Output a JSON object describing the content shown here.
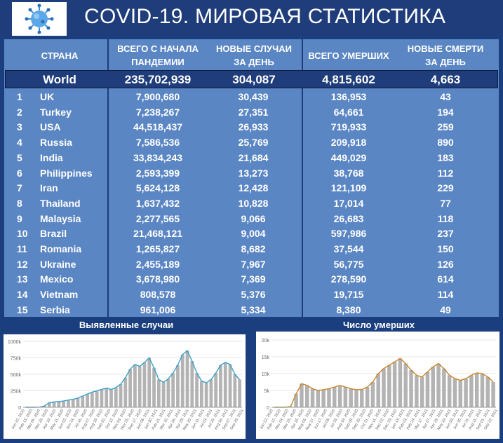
{
  "header": {
    "title": "COVID-19. МИРОВАЯ СТАТИСТИКА",
    "logo_icon": "coronavirus-icon"
  },
  "table": {
    "columns": {
      "country": "СТРАНА",
      "total_line1": "ВСЕГО С НАЧАЛА",
      "total_line2": "ПАНДЕМИИ",
      "new_line1": "НОВЫЕ СЛУЧАИ",
      "new_line2": "ЗА ДЕНЬ",
      "deaths": "ВСЕГО УМЕРШИХ",
      "new_deaths_line1": "НОВЫЕ СМЕРТИ",
      "new_deaths_line2": "ЗА ДЕНЬ"
    },
    "world": {
      "name": "World",
      "total": "235,702,939",
      "new": "304,087",
      "deaths": "4,815,602",
      "new_deaths": "4,663"
    },
    "rows": [
      {
        "rank": "1",
        "country": "UK",
        "total": "7,900,680",
        "new": "30,439",
        "deaths": "136,953",
        "new_deaths": "43"
      },
      {
        "rank": "2",
        "country": "Turkey",
        "total": "7,238,267",
        "new": "27,351",
        "deaths": "64,661",
        "new_deaths": "194"
      },
      {
        "rank": "3",
        "country": "USA",
        "total": "44,518,437",
        "new": "26,933",
        "deaths": "719,933",
        "new_deaths": "259"
      },
      {
        "rank": "4",
        "country": "Russia",
        "total": "7,586,536",
        "new": "25,769",
        "deaths": "209,918",
        "new_deaths": "890"
      },
      {
        "rank": "5",
        "country": "India",
        "total": "33,834,243",
        "new": "21,684",
        "deaths": "449,029",
        "new_deaths": "183"
      },
      {
        "rank": "6",
        "country": "Philippines",
        "total": "2,593,399",
        "new": "13,273",
        "deaths": "38,768",
        "new_deaths": "112"
      },
      {
        "rank": "7",
        "country": "Iran",
        "total": "5,624,128",
        "new": "12,428",
        "deaths": "121,109",
        "new_deaths": "229"
      },
      {
        "rank": "8",
        "country": "Thailand",
        "total": "1,637,432",
        "new": "10,828",
        "deaths": "17,014",
        "new_deaths": "77"
      },
      {
        "rank": "9",
        "country": "Malaysia",
        "total": "2,277,565",
        "new": "9,066",
        "deaths": "26,683",
        "new_deaths": "118"
      },
      {
        "rank": "10",
        "country": "Brazil",
        "total": "21,468,121",
        "new": "9,004",
        "deaths": "597,986",
        "new_deaths": "237"
      },
      {
        "rank": "11",
        "country": "Romania",
        "total": "1,265,827",
        "new": "8,682",
        "deaths": "37,544",
        "new_deaths": "150"
      },
      {
        "rank": "12",
        "country": "Ukraine",
        "total": "2,455,189",
        "new": "7,967",
        "deaths": "56,775",
        "new_deaths": "126"
      },
      {
        "rank": "13",
        "country": "Mexico",
        "total": "3,678,980",
        "new": "7,369",
        "deaths": "278,590",
        "new_deaths": "614"
      },
      {
        "rank": "14",
        "country": "Vietnam",
        "total": "808,578",
        "new": "5,376",
        "deaths": "19,715",
        "new_deaths": "114"
      },
      {
        "rank": "15",
        "country": "Serbia",
        "total": "961,006",
        "new": "5,334",
        "deaths": "8,380",
        "new_deaths": "49"
      }
    ]
  },
  "colors": {
    "header_bg": "#1f3d7a",
    "table_bg": "#5b86c4",
    "bar": "#b3b3b3",
    "cases_line": "#3aa0c8",
    "deaths_line": "#c8862a"
  },
  "chart_data": [
    {
      "type": "bar",
      "title": "Выявленные случаи",
      "series_style": "bars-with-line",
      "y_ticks": [
        "0",
        "250k",
        "500k",
        "750k",
        "1000k"
      ],
      "ylim": [
        0,
        1000000
      ],
      "x_ticks": [
        "Jan 22, 2020",
        "Feb 13, 2020",
        "Mar 06, 2020",
        "Mar 28, 2020",
        "Apr 19, 2020",
        "May 11, 2020",
        "Jun 02, 2020",
        "Jun 24, 2020",
        "Jul 16, 2020",
        "Aug 07, 2020",
        "Aug 29, 2020",
        "Sep 20, 2020",
        "Oct 12, 2020",
        "Nov 03, 2020",
        "Nov 25, 2020",
        "Dec 17, 2020",
        "Jan 08, 2021",
        "Jan 30, 2021",
        "Feb 21, 2021",
        "Mar 15, 2021",
        "Apr 06, 2021",
        "Apr 28, 2021",
        "May 20, 2021",
        "Jun 11, 2021",
        "Jul 03, 2021",
        "Jul 25, 2021",
        "Aug 16, 2021",
        "Sep 07, 2021",
        "Sep 29, 2021"
      ],
      "values": [
        0,
        0,
        0,
        2000,
        20000,
        70000,
        80000,
        85000,
        95000,
        110000,
        120000,
        140000,
        170000,
        200000,
        230000,
        250000,
        270000,
        290000,
        270000,
        300000,
        350000,
        450000,
        580000,
        650000,
        620000,
        680000,
        750000,
        600000,
        420000,
        380000,
        430000,
        520000,
        640000,
        800000,
        860000,
        700000,
        520000,
        400000,
        370000,
        420000,
        520000,
        640000,
        680000,
        650000,
        500000,
        420000
      ]
    },
    {
      "type": "bar",
      "title": "Число умерших",
      "series_style": "bars-with-line",
      "y_ticks": [
        "0",
        "5k",
        "10k",
        "15k",
        "20k"
      ],
      "ylim": [
        0,
        20000
      ],
      "x_ticks": [
        "Jan 22, 2020",
        "Feb 12, 2020",
        "Mar 04, 2020",
        "Mar 25, 2020",
        "Apr 15, 2020",
        "May 06, 2020",
        "May 27, 2020",
        "Jun 17, 2020",
        "Jul 08, 2020",
        "Jul 29, 2020",
        "Aug 19, 2020",
        "Sep 09, 2020",
        "Sep 30, 2020",
        "Oct 21, 2020",
        "Nov 11, 2020",
        "Dec 02, 2020",
        "Dec 23, 2020",
        "Jan 13, 2021",
        "Feb 03, 2021",
        "Feb 24, 2021",
        "Mar 17, 2021",
        "Apr 07, 2021",
        "Apr 28, 2021",
        "May 19, 2021",
        "Jun 09, 2021",
        "Jun 30, 2021",
        "Jul 21, 2021",
        "Aug 11, 2021",
        "Sep 01, 2021",
        "Sep 22, 2021"
      ],
      "values": [
        0,
        0,
        0,
        200,
        4000,
        7000,
        6500,
        5500,
        5000,
        5200,
        5500,
        6000,
        6500,
        6000,
        5500,
        5200,
        5300,
        6000,
        7500,
        10000,
        11500,
        12500,
        13500,
        14500,
        13000,
        11000,
        9500,
        9000,
        10500,
        12000,
        13000,
        11500,
        9500,
        8500,
        8000,
        8500,
        9500,
        10200,
        10000,
        9000,
        7500
      ]
    }
  ]
}
